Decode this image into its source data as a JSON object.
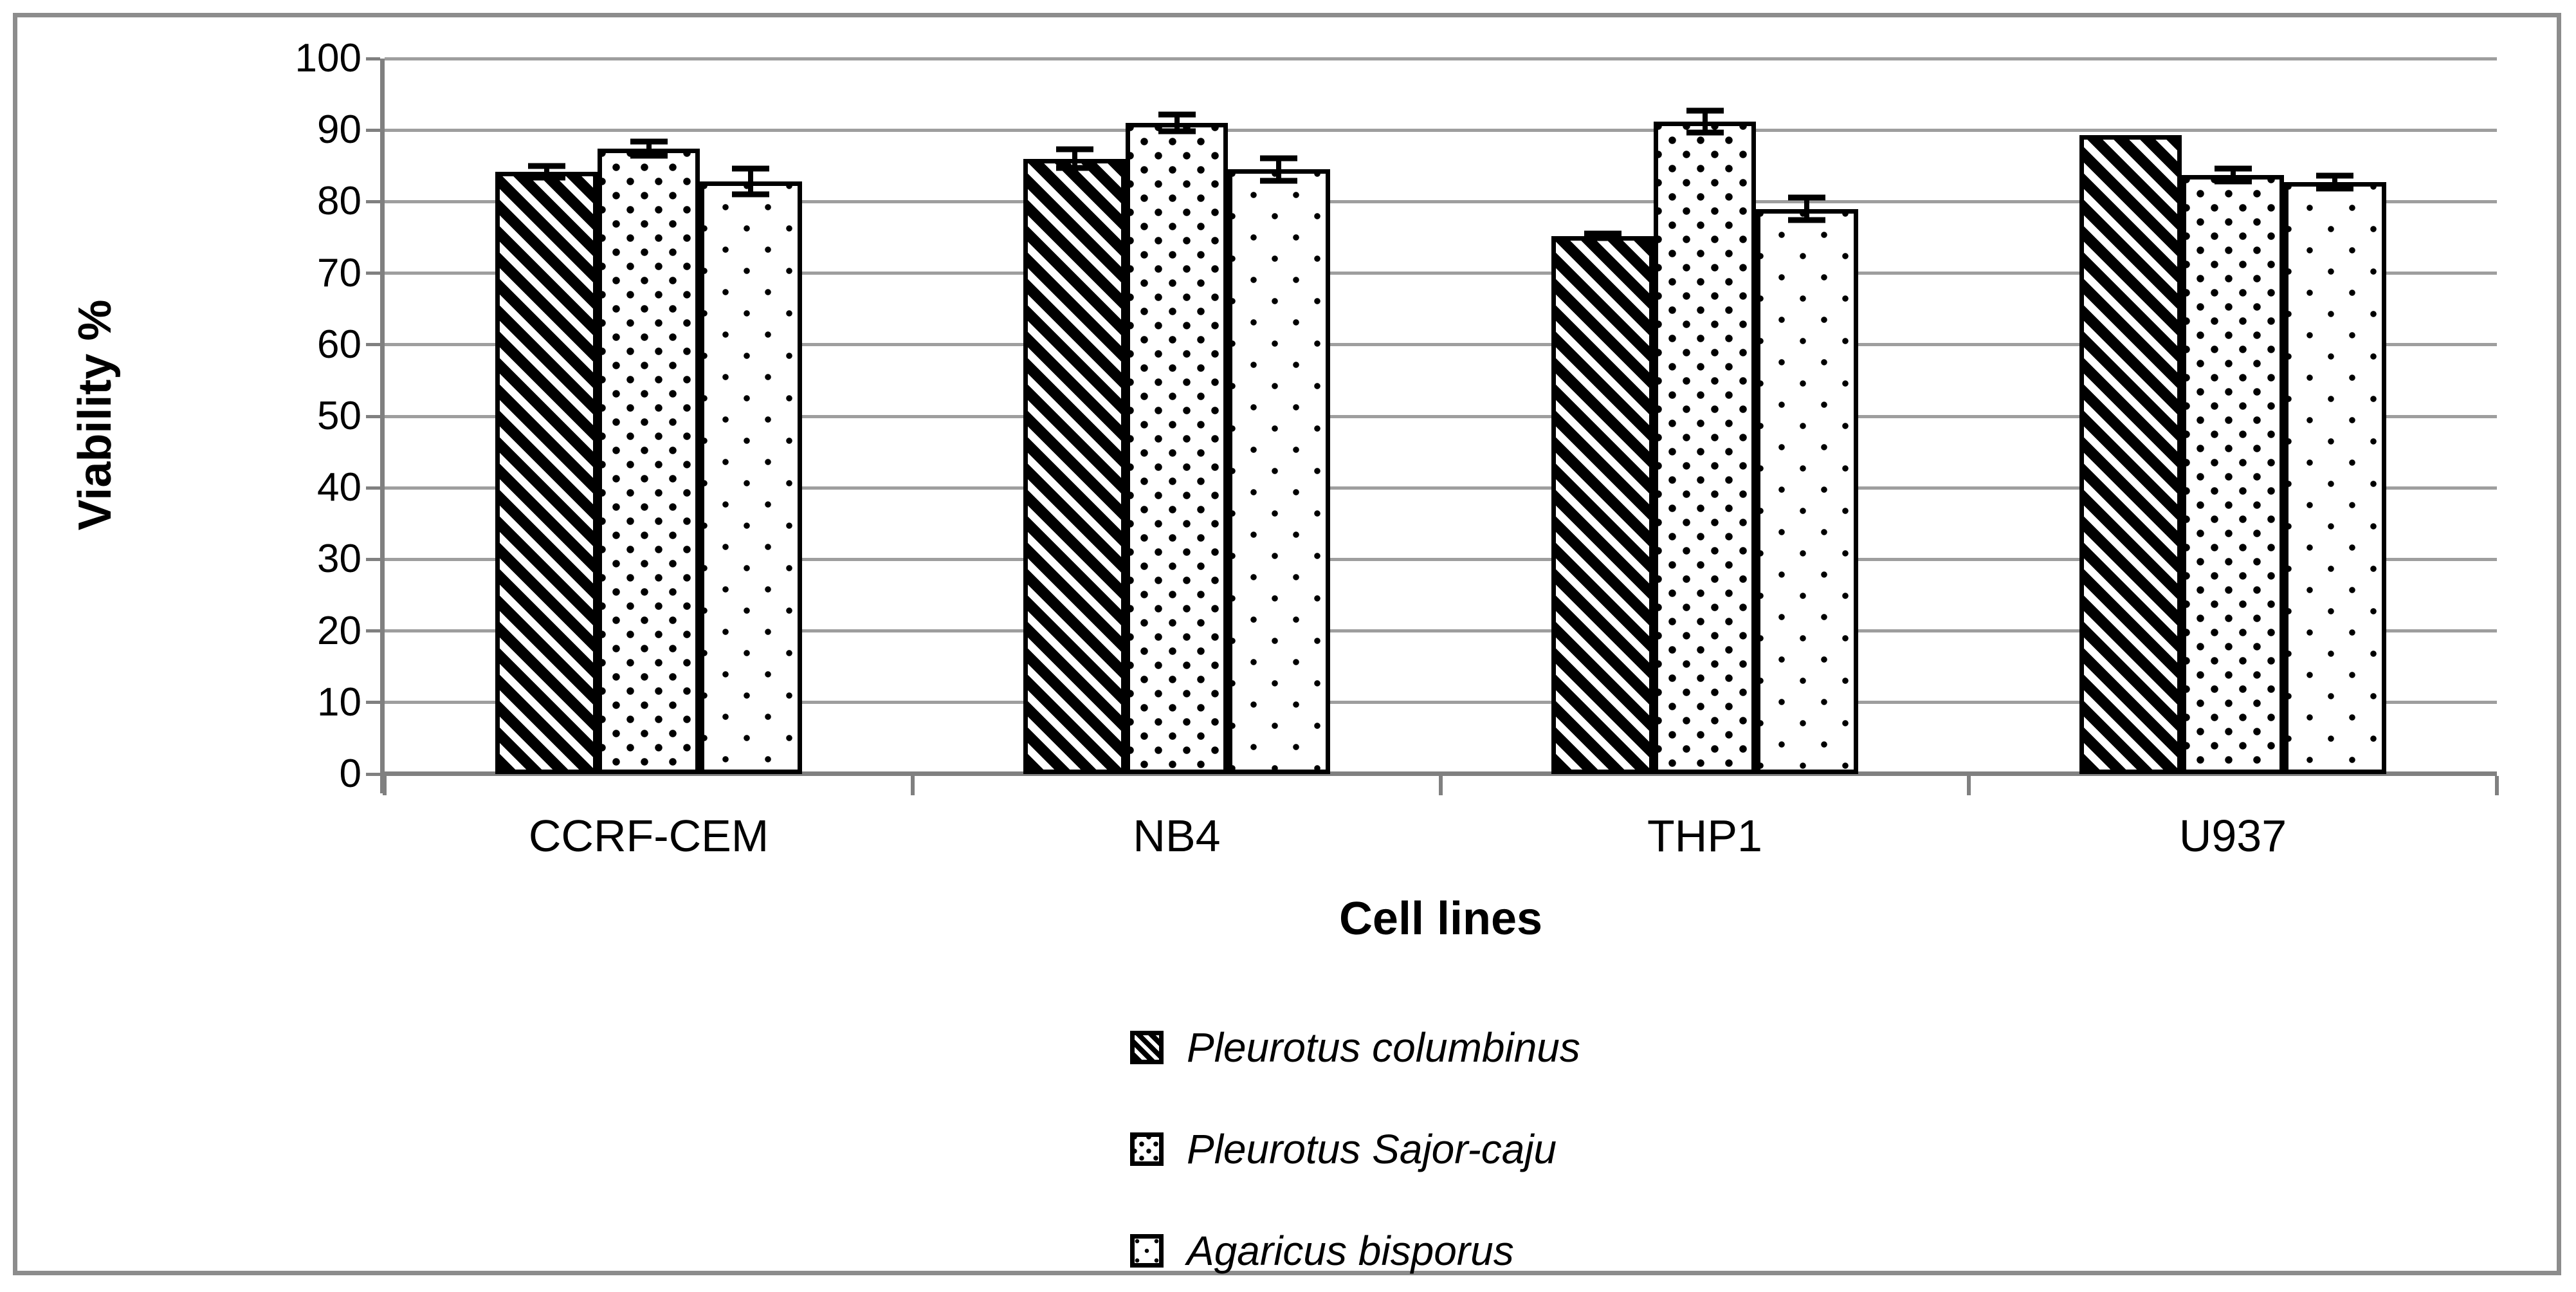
{
  "figure": {
    "border_color": "#8c8c8c",
    "background": "#ffffff"
  },
  "chart_data": {
    "type": "bar",
    "title": "",
    "xlabel": "Cell lines",
    "ylabel": "Viability %",
    "ylim": [
      0,
      100
    ],
    "yticks": [
      0,
      10,
      20,
      30,
      40,
      50,
      60,
      70,
      80,
      90,
      100
    ],
    "grid": "horizontal",
    "legend_position": "bottom-center",
    "categories": [
      "CCRF-CEM",
      "NB4",
      "THP1",
      "U937"
    ],
    "series": [
      {
        "name": "Pleurotus columbinus",
        "pattern": "hatch",
        "values": [
          84.2,
          86.0,
          75.2,
          89.3
        ],
        "errors": [
          0.8,
          1.3,
          0.3,
          0
        ]
      },
      {
        "name": "Pleurotus Sajor-caju",
        "pattern": "dots-dense",
        "values": [
          87.4,
          91.0,
          91.2,
          83.7
        ],
        "errors": [
          1.0,
          1.2,
          1.5,
          0.9
        ]
      },
      {
        "name": "Agaricus bisporus",
        "pattern": "dots-sparse",
        "values": [
          82.8,
          84.5,
          79.0,
          82.7
        ],
        "errors": [
          1.8,
          1.6,
          1.6,
          0.9
        ]
      }
    ],
    "colors": {
      "gridline": "#9e9e9e",
      "axis": "#808080",
      "bar_border": "#000000",
      "text": "#000000"
    }
  }
}
